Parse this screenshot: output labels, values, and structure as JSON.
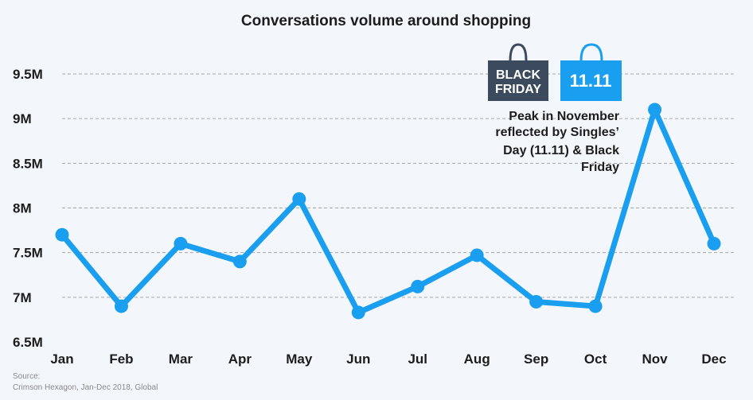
{
  "chart_data": {
    "type": "line",
    "title": "Conversations volume around shopping",
    "categories": [
      "Jan",
      "Feb",
      "Mar",
      "Apr",
      "May",
      "Jun",
      "Jul",
      "Aug",
      "Sep",
      "Oct",
      "Nov",
      "Dec"
    ],
    "series": [
      {
        "values": [
          7.7,
          6.9,
          7.6,
          7.4,
          8.1,
          6.83,
          7.12,
          7.47,
          6.95,
          6.9,
          9.1,
          7.6
        ]
      }
    ],
    "ylim": [
      6.5,
      9.5
    ],
    "yticks": [
      6.5,
      7,
      7.5,
      8,
      8.5,
      9,
      9.5
    ],
    "ytick_labels": [
      "6.5M",
      "7M",
      "7.5M",
      "8M",
      "8.5M",
      "9M",
      "9.5M"
    ],
    "grid": true,
    "colors": {
      "series": "#1a9ff0",
      "black_friday_bag": "#3b4a5c",
      "singles_day_bag": "#1a9ff0"
    },
    "annotation": {
      "lines": [
        "Peak in November",
        "reflected by Singles’",
        "Day (11.11) & Black",
        "Friday"
      ]
    },
    "badges": {
      "black_friday": [
        "BLACK",
        "FRIDAY"
      ],
      "singles_day": "11.11"
    },
    "source": [
      "Source:",
      "Crimson Hexagon, Jan-Dec 2018, Global"
    ]
  }
}
